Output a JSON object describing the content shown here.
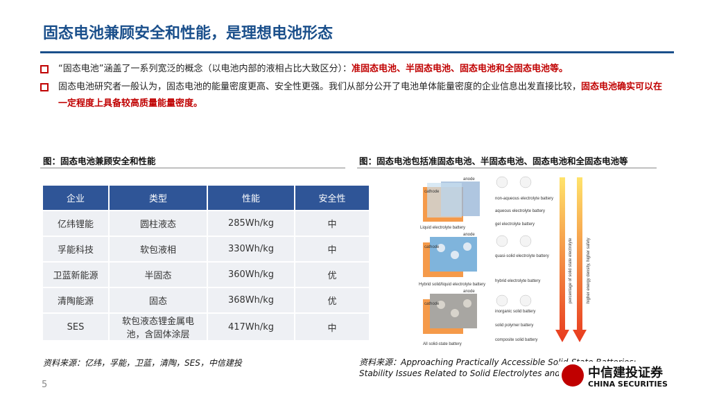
{
  "header": {
    "title": "固态电池兼顾安全和性能，是理想电池形态"
  },
  "bullets": [
    {
      "text": "“固态电池”涵盖了一系列宽泛的概念（以电池内部的液相占比大致区分）：",
      "highlight": "准固态电池、半固态电池、固态电池和全固态电池等。"
    },
    {
      "text": "固态电池研究者一般认为，固态电池的能量密度更高、安全性更强。我们从部分公开了电池单体能量密度的企业信息出发直接比较，",
      "highlight": "固态电池确实可以在一定程度上具备较高质量能量密度。"
    }
  ],
  "left_figure": {
    "caption": "图：固态电池兼顾安全和性能",
    "source": "资料来源：亿纬，孚能，卫蓝，清陶，SES，中信建投"
  },
  "table": {
    "header": [
      "企业",
      "类型",
      "性能",
      "安全性"
    ],
    "rows": [
      [
        "亿纬锂能",
        "圆柱液态",
        "285Wh/kg",
        "中"
      ],
      [
        "孚能科技",
        "软包液相",
        "330Wh/kg",
        "中"
      ],
      [
        "卫蓝新能源",
        "半固态",
        "360Wh/kg",
        "优"
      ],
      [
        "清陶能源",
        "固态",
        "368Wh/kg",
        "优"
      ],
      [
        "SES",
        "软包液态锂金属电池，含固体涂层",
        "417Wh/kg",
        "中"
      ]
    ]
  },
  "right_figure": {
    "caption": "图：固态电池包括准固态电池、半固态电池、固态电池和全固态电池等",
    "source": "资料来源：Approaching Practically Accessible Solid-State Batteries: Stability Issues Related to Solid Electrolytes and Interfaces",
    "diagram": {
      "batteries": [
        "Liquid electrolyte battery",
        "Hybrid solid/liquid electrolyte battery",
        "All solid-state battery"
      ],
      "types": [
        "non-aqueous electrolyte battery",
        "aqueous electrolyte battery",
        "gel electrolyte battery",
        "quasi-solid electrolyte battery",
        "hybrid electrolyte battery",
        "inorganic solid battery",
        "solid polymer battery",
        "composite solid battery"
      ],
      "anode": "anode",
      "cathode": "cathode",
      "axis1": "percentage of solid state electrolyte",
      "axis2": "higher energy density, higher safety"
    }
  },
  "footer": {
    "page": "5",
    "logo": "中信建投证券",
    "logo_en": "CHINA SECURITIES"
  }
}
